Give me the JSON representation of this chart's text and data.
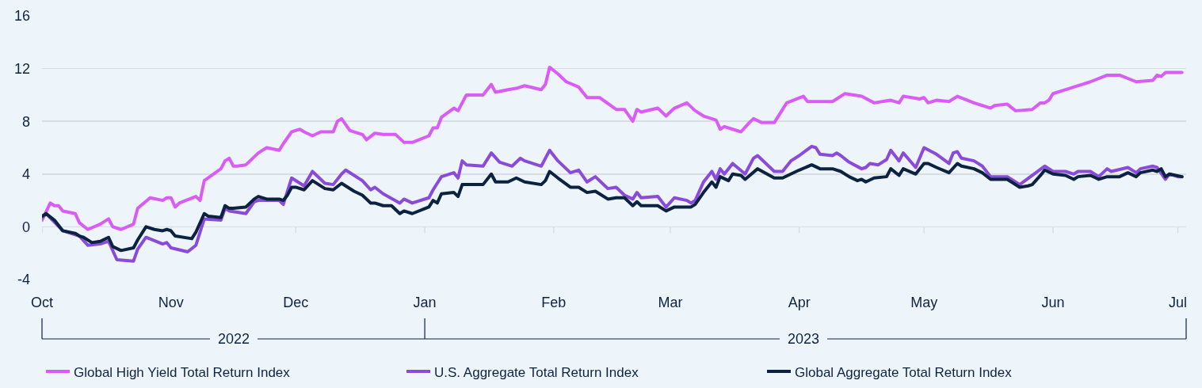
{
  "chart_data": {
    "type": "line",
    "xlim": [
      "2022-10-01",
      "2023-07-03"
    ],
    "xticks": [
      {
        "value": "2022-10-01",
        "label": "Oct"
      },
      {
        "value": "2022-11-01",
        "label": "Nov"
      },
      {
        "value": "2022-12-01",
        "label": "Dec"
      },
      {
        "value": "2023-01-01",
        "label": "Jan"
      },
      {
        "value": "2023-02-01",
        "label": "Feb"
      },
      {
        "value": "2023-03-01",
        "label": "Mar"
      },
      {
        "value": "2023-04-01",
        "label": "Apr"
      },
      {
        "value": "2023-05-01",
        "label": "May"
      },
      {
        "value": "2023-06-01",
        "label": "Jun"
      },
      {
        "value": "2023-07-01",
        "label": "Jul"
      }
    ],
    "ylim": [
      -4,
      16
    ],
    "yticks": [
      -4,
      0,
      4,
      8,
      12,
      16
    ],
    "grid": "y",
    "legend": "bottom",
    "annotations": [
      "2022",
      "2023"
    ],
    "series": [
      {
        "name": "Global High Yield Total Return Index",
        "color": "#d95cf6",
        "x": [
          "2022-10-01",
          "2022-10-03",
          "2022-10-04",
          "2022-10-05",
          "2022-10-06",
          "2022-10-09",
          "2022-10-10",
          "2022-10-12",
          "2022-10-15",
          "2022-10-17",
          "2022-10-18",
          "2022-10-20",
          "2022-10-23",
          "2022-10-24",
          "2022-10-27",
          "2022-10-30",
          "2022-10-31",
          "2022-11-01",
          "2022-11-02",
          "2022-11-03",
          "2022-11-07",
          "2022-11-08",
          "2022-11-09",
          "2022-11-13",
          "2022-11-14",
          "2022-11-15",
          "2022-11-16",
          "2022-11-17",
          "2022-11-19",
          "2022-11-22",
          "2022-11-24",
          "2022-11-27",
          "2022-11-28",
          "2022-11-30",
          "2022-12-02",
          "2022-12-03",
          "2022-12-05",
          "2022-12-07",
          "2022-12-10",
          "2022-12-11",
          "2022-12-12",
          "2022-12-14",
          "2022-12-17",
          "2022-12-18",
          "2022-12-20",
          "2022-12-22",
          "2022-12-25",
          "2022-12-27",
          "2022-12-29",
          "2023-01-02",
          "2023-01-03",
          "2023-01-04",
          "2023-01-05",
          "2023-01-08",
          "2023-01-09",
          "2023-01-11",
          "2023-01-15",
          "2023-01-17",
          "2023-01-18",
          "2023-01-21",
          "2023-01-23",
          "2023-01-25",
          "2023-01-29",
          "2023-01-30",
          "2023-01-31",
          "2023-02-02",
          "2023-02-04",
          "2023-02-07",
          "2023-02-09",
          "2023-02-12",
          "2023-02-16",
          "2023-02-18",
          "2023-02-20",
          "2023-02-21",
          "2023-02-22",
          "2023-02-26",
          "2023-02-28",
          "2023-03-02",
          "2023-03-05",
          "2023-03-07",
          "2023-03-09",
          "2023-03-12",
          "2023-03-13",
          "2023-03-14",
          "2023-03-18",
          "2023-03-20",
          "2023-03-21",
          "2023-03-23",
          "2023-03-26",
          "2023-03-29",
          "2023-04-02",
          "2023-04-03",
          "2023-04-09",
          "2023-04-12",
          "2023-04-16",
          "2023-04-19",
          "2023-04-23",
          "2023-04-25",
          "2023-04-26",
          "2023-04-30",
          "2023-05-01",
          "2023-05-02",
          "2023-05-04",
          "2023-05-07",
          "2023-05-09",
          "2023-05-13",
          "2023-05-15",
          "2023-05-17",
          "2023-05-18",
          "2023-05-21",
          "2023-05-23",
          "2023-05-27",
          "2023-05-29",
          "2023-05-30",
          "2023-05-31",
          "2023-06-01",
          "2023-06-03",
          "2023-06-05",
          "2023-06-06",
          "2023-06-08",
          "2023-06-10",
          "2023-06-14",
          "2023-06-17",
          "2023-06-21",
          "2023-06-25",
          "2023-06-26",
          "2023-06-27",
          "2023-06-28",
          "2023-07-02"
        ],
        "values": [
          0.5,
          1.8,
          1.6,
          1.6,
          1.2,
          1.0,
          0.3,
          -0.2,
          0.2,
          0.6,
          0.0,
          -0.2,
          0.2,
          1.4,
          2.2,
          2.0,
          2.2,
          2.2,
          1.5,
          1.8,
          2.3,
          2.0,
          3.5,
          4.4,
          5.0,
          5.2,
          4.6,
          4.6,
          4.7,
          5.6,
          6.0,
          5.8,
          6.3,
          7.2,
          7.4,
          7.2,
          6.9,
          7.2,
          7.2,
          8.0,
          8.2,
          7.3,
          7.0,
          6.6,
          7.1,
          7.0,
          7.0,
          6.4,
          6.4,
          6.9,
          7.5,
          7.5,
          8.3,
          9.0,
          8.8,
          10.0,
          10.0,
          10.8,
          10.2,
          10.4,
          10.5,
          10.7,
          10.4,
          10.8,
          12.1,
          11.6,
          11.0,
          10.6,
          9.8,
          9.8,
          8.9,
          8.9,
          8.0,
          8.9,
          8.7,
          9.0,
          8.4,
          9.0,
          9.4,
          8.8,
          8.4,
          8.1,
          7.4,
          7.6,
          7.2,
          7.9,
          8.2,
          7.9,
          7.9,
          9.4,
          9.9,
          9.5,
          9.5,
          10.1,
          9.9,
          9.4,
          9.6,
          9.4,
          9.9,
          9.7,
          9.8,
          9.4,
          9.6,
          9.5,
          9.9,
          9.4,
          9.2,
          9.0,
          9.2,
          9.3,
          8.8,
          8.9,
          9.4,
          9.4,
          9.6,
          10.1,
          10.3,
          10.5,
          10.6,
          10.8,
          11.0,
          11.5,
          11.5,
          11.0,
          11.1,
          11.5,
          11.4,
          11.7,
          11.7
        ]
      },
      {
        "name": "U.S. Aggregate Total Return Index",
        "color": "#8a4bdb",
        "x": [
          "2022-10-01",
          "2022-10-02",
          "2022-10-06",
          "2022-10-10",
          "2022-10-12",
          "2022-10-15",
          "2022-10-17",
          "2022-10-19",
          "2022-10-23",
          "2022-10-24",
          "2022-10-26",
          "2022-10-30",
          "2022-10-31",
          "2022-11-01",
          "2022-11-05",
          "2022-11-07",
          "2022-11-09",
          "2022-11-13",
          "2022-11-14",
          "2022-11-15",
          "2022-11-17",
          "2022-11-19",
          "2022-11-21",
          "2022-11-22",
          "2022-11-27",
          "2022-11-28",
          "2022-11-30",
          "2022-12-03",
          "2022-12-05",
          "2022-12-08",
          "2022-12-10",
          "2022-12-12",
          "2022-12-13",
          "2022-12-17",
          "2022-12-19",
          "2022-12-20",
          "2022-12-22",
          "2022-12-26",
          "2022-12-27",
          "2022-12-29",
          "2023-01-02",
          "2023-01-03",
          "2023-01-05",
          "2023-01-08",
          "2023-01-09",
          "2023-01-10",
          "2023-01-11",
          "2023-01-15",
          "2023-01-17",
          "2023-01-19",
          "2023-01-22",
          "2023-01-24",
          "2023-01-25",
          "2023-01-29",
          "2023-01-30",
          "2023-01-31",
          "2023-02-02",
          "2023-02-05",
          "2023-02-07",
          "2023-02-09",
          "2023-02-11",
          "2023-02-14",
          "2023-02-16",
          "2023-02-18",
          "2023-02-20",
          "2023-02-21",
          "2023-02-22",
          "2023-02-26",
          "2023-02-28",
          "2023-03-02",
          "2023-03-05",
          "2023-03-06",
          "2023-03-07",
          "2023-03-09",
          "2023-03-11",
          "2023-03-12",
          "2023-03-13",
          "2023-03-14",
          "2023-03-16",
          "2023-03-19",
          "2023-03-21",
          "2023-03-22",
          "2023-03-26",
          "2023-03-28",
          "2023-03-30",
          "2023-04-01",
          "2023-04-04",
          "2023-04-05",
          "2023-04-06",
          "2023-04-09",
          "2023-04-10",
          "2023-04-11",
          "2023-04-13",
          "2023-04-16",
          "2023-04-17",
          "2023-04-18",
          "2023-04-20",
          "2023-04-22",
          "2023-04-23",
          "2023-04-25",
          "2023-04-26",
          "2023-04-29",
          "2023-05-01",
          "2023-05-04",
          "2023-05-07",
          "2023-05-08",
          "2023-05-09",
          "2023-05-10",
          "2023-05-13",
          "2023-05-15",
          "2023-05-17",
          "2023-05-21",
          "2023-05-22",
          "2023-05-24",
          "2023-05-30",
          "2023-06-01",
          "2023-06-04",
          "2023-06-06",
          "2023-06-07",
          "2023-06-10",
          "2023-06-12",
          "2023-06-14",
          "2023-06-15",
          "2023-06-19",
          "2023-06-21",
          "2023-06-22",
          "2023-06-25",
          "2023-06-26",
          "2023-06-28",
          "2023-06-29",
          "2023-07-01",
          "2023-07-02"
        ],
        "values": [
          0.7,
          1.0,
          -0.3,
          -0.7,
          -1.4,
          -1.3,
          -1.1,
          -2.5,
          -2.6,
          -1.7,
          -0.8,
          -1.3,
          -1.2,
          -1.6,
          -1.9,
          -1.4,
          0.6,
          0.5,
          1.4,
          1.2,
          1.1,
          1.0,
          1.9,
          2.0,
          2.0,
          1.7,
          3.7,
          3.1,
          4.2,
          3.3,
          3.2,
          4.0,
          4.3,
          3.5,
          2.8,
          3.0,
          2.5,
          1.8,
          2.1,
          1.8,
          2.2,
          2.8,
          3.8,
          4.1,
          3.7,
          5.0,
          4.7,
          4.6,
          5.6,
          4.9,
          4.6,
          5.2,
          5.0,
          4.6,
          5.2,
          5.8,
          5.0,
          4.1,
          4.3,
          3.4,
          3.8,
          2.9,
          3.0,
          2.4,
          2.1,
          2.6,
          2.2,
          2.3,
          1.5,
          2.2,
          2.0,
          1.8,
          2.0,
          3.4,
          4.2,
          3.6,
          4.4,
          4.0,
          4.8,
          4.0,
          5.2,
          5.4,
          4.2,
          4.2,
          5.0,
          5.4,
          6.1,
          6.0,
          5.5,
          5.4,
          5.6,
          5.4,
          4.9,
          4.4,
          4.5,
          4.8,
          4.7,
          5.1,
          5.8,
          5.0,
          5.6,
          4.5,
          6.0,
          5.5,
          4.8,
          5.6,
          5.7,
          5.2,
          5.0,
          4.6,
          3.8,
          3.8,
          3.6,
          3.2,
          4.6,
          4.2,
          4.2,
          4.0,
          4.2,
          4.2,
          3.8,
          4.4,
          4.2,
          4.5,
          4.1,
          4.4,
          4.6,
          4.5,
          3.6,
          4.0,
          3.8,
          3.8
        ]
      },
      {
        "name": "Global Aggregate Total Return Index",
        "color": "#0b2340",
        "x": [
          "2022-10-01",
          "2022-10-02",
          "2022-10-04",
          "2022-10-06",
          "2022-10-09",
          "2022-10-10",
          "2022-10-11",
          "2022-10-13",
          "2022-10-15",
          "2022-10-17",
          "2022-10-18",
          "2022-10-20",
          "2022-10-23",
          "2022-10-24",
          "2022-10-26",
          "2022-10-28",
          "2022-10-30",
          "2022-10-31",
          "2022-11-01",
          "2022-11-02",
          "2022-11-06",
          "2022-11-07",
          "2022-11-09",
          "2022-11-10",
          "2022-11-13",
          "2022-11-14",
          "2022-11-15",
          "2022-11-16",
          "2022-11-19",
          "2022-11-21",
          "2022-11-22",
          "2022-11-24",
          "2022-11-27",
          "2022-11-28",
          "2022-11-29",
          "2022-11-30",
          "2022-12-01",
          "2022-12-03",
          "2022-12-05",
          "2022-12-08",
          "2022-12-10",
          "2022-12-12",
          "2022-12-15",
          "2022-12-17",
          "2022-12-19",
          "2022-12-20",
          "2022-12-22",
          "2022-12-24",
          "2022-12-26",
          "2022-12-27",
          "2022-12-29",
          "2023-01-02",
          "2023-01-03",
          "2023-01-04",
          "2023-01-05",
          "2023-01-08",
          "2023-01-09",
          "2023-01-10",
          "2023-01-15",
          "2023-01-17",
          "2023-01-18",
          "2023-01-21",
          "2023-01-23",
          "2023-01-25",
          "2023-01-29",
          "2023-01-30",
          "2023-01-31",
          "2023-02-02",
          "2023-02-05",
          "2023-02-07",
          "2023-02-09",
          "2023-02-11",
          "2023-02-14",
          "2023-02-16",
          "2023-02-18",
          "2023-02-20",
          "2023-02-21",
          "2023-02-22",
          "2023-02-26",
          "2023-02-28",
          "2023-03-02",
          "2023-03-06",
          "2023-03-07",
          "2023-03-09",
          "2023-03-11",
          "2023-03-12",
          "2023-03-13",
          "2023-03-15",
          "2023-03-16",
          "2023-03-18",
          "2023-03-19",
          "2023-03-22",
          "2023-03-26",
          "2023-03-28",
          "2023-03-30",
          "2023-04-01",
          "2023-04-04",
          "2023-04-06",
          "2023-04-09",
          "2023-04-11",
          "2023-04-13",
          "2023-04-15",
          "2023-04-16",
          "2023-04-17",
          "2023-04-19",
          "2023-04-22",
          "2023-04-23",
          "2023-04-25",
          "2023-04-26",
          "2023-04-29",
          "2023-05-01",
          "2023-05-02",
          "2023-05-04",
          "2023-05-07",
          "2023-05-09",
          "2023-05-10",
          "2023-05-13",
          "2023-05-15",
          "2023-05-17",
          "2023-05-21",
          "2023-05-22",
          "2023-05-24",
          "2023-05-26",
          "2023-05-27",
          "2023-05-29",
          "2023-05-30",
          "2023-06-01",
          "2023-06-04",
          "2023-06-06",
          "2023-06-07",
          "2023-06-10",
          "2023-06-12",
          "2023-06-14",
          "2023-06-17",
          "2023-06-19",
          "2023-06-21",
          "2023-06-22",
          "2023-06-25",
          "2023-06-26",
          "2023-06-27",
          "2023-06-28",
          "2023-06-29",
          "2023-07-02"
        ],
        "values": [
          0.8,
          1.0,
          0.5,
          -0.3,
          -0.5,
          -0.7,
          -0.8,
          -1.2,
          -1.1,
          -0.8,
          -1.5,
          -1.8,
          -1.6,
          -1.0,
          0.0,
          -0.2,
          -0.3,
          -0.2,
          -0.3,
          -0.7,
          -0.9,
          -0.4,
          1.0,
          0.8,
          0.7,
          1.6,
          1.4,
          1.4,
          1.5,
          2.1,
          2.3,
          2.1,
          2.1,
          2.0,
          2.4,
          3.0,
          3.0,
          2.8,
          3.5,
          2.9,
          2.8,
          3.3,
          2.7,
          2.4,
          1.8,
          1.8,
          1.6,
          1.6,
          1.0,
          1.2,
          1.0,
          1.5,
          2.0,
          1.8,
          2.5,
          2.6,
          2.3,
          3.2,
          3.2,
          4.0,
          3.4,
          3.4,
          3.7,
          3.4,
          3.2,
          3.5,
          4.2,
          3.7,
          3.0,
          3.0,
          2.6,
          2.7,
          2.1,
          2.2,
          2.2,
          1.6,
          1.9,
          1.6,
          1.6,
          1.2,
          1.5,
          1.5,
          1.7,
          2.6,
          3.4,
          3.0,
          3.8,
          3.5,
          4.0,
          3.9,
          3.6,
          4.4,
          3.7,
          3.7,
          4.0,
          4.3,
          4.7,
          4.4,
          4.4,
          4.2,
          3.8,
          3.5,
          3.6,
          3.4,
          3.7,
          3.8,
          4.4,
          3.9,
          4.4,
          4.0,
          4.8,
          4.8,
          4.5,
          4.1,
          4.8,
          4.6,
          4.4,
          4.1,
          3.6,
          3.6,
          3.4,
          3.0,
          3.1,
          3.2,
          3.9,
          4.3,
          4.0,
          3.9,
          3.6,
          3.8,
          3.9,
          3.6,
          3.8,
          3.8,
          4.1,
          3.8,
          4.1,
          4.3,
          4.2,
          4.4,
          3.8,
          4.0,
          3.8
        ]
      }
    ]
  }
}
